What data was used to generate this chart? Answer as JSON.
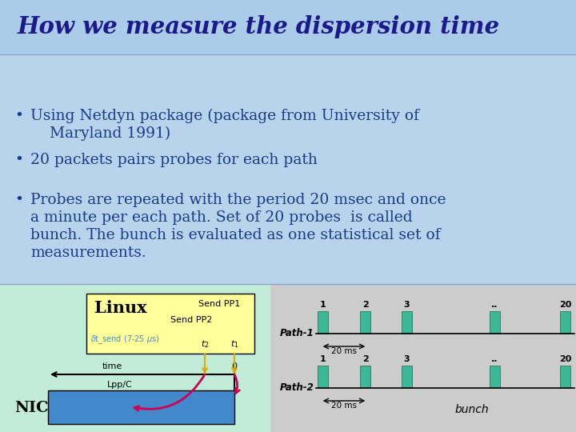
{
  "title": "How we measure the dispersion time",
  "title_color": "#1a1a8c",
  "title_bg": "#aacce8",
  "body_bg": "#b8d4ec",
  "bullet_color": "#1a3a8c",
  "bullet1": "Using Netdyn package (package from University of",
  "bullet1b": "    Maryland 1991)",
  "bullet2": "20 packets pairs probes for each path",
  "bullet3a": "Probes are repeated with the period 20 msec and once",
  "bullet3b": "a minute per each path. Set of 20 probes  is called",
  "bullet3c": "bunch. The bunch is evaluated as one statistical set of",
  "bullet3d": "measurements.",
  "diagram_left_bg": "#c0ecd8",
  "diagram_right_bg": "#cccccc",
  "linux_box_bg": "#ffff99",
  "teal_color": "#3cb898",
  "blue_bar_color": "#4488cc",
  "arrow_color": "#cc0055",
  "orange_color": "#ddaa00",
  "delta_color": "#4488cc"
}
